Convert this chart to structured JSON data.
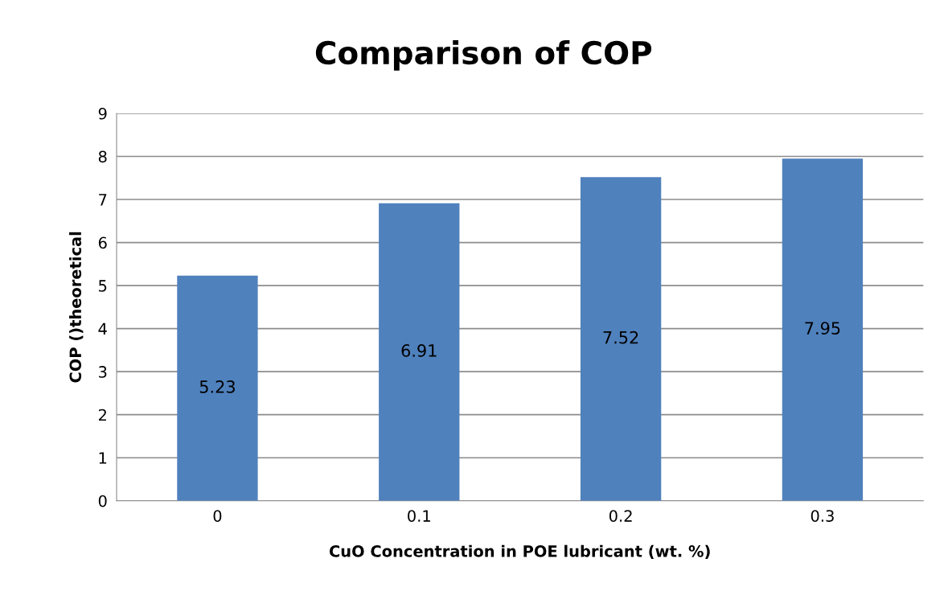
{
  "chart_data": {
    "type": "bar",
    "title": "Comparison of COP",
    "xlabel": "CuO Concentration in POE lubricant (wt. %)",
    "ylabel": "COP ()theoretical",
    "categories": [
      "0",
      "0.1",
      "0.2",
      "0.3"
    ],
    "values": [
      5.23,
      6.91,
      7.52,
      7.95
    ],
    "color": "#4f81bd",
    "ylim": [
      0,
      9
    ],
    "yticks": [
      0,
      1,
      2,
      3,
      4,
      5,
      6,
      7,
      8,
      9
    ],
    "grid": "y",
    "data_labels": true
  }
}
